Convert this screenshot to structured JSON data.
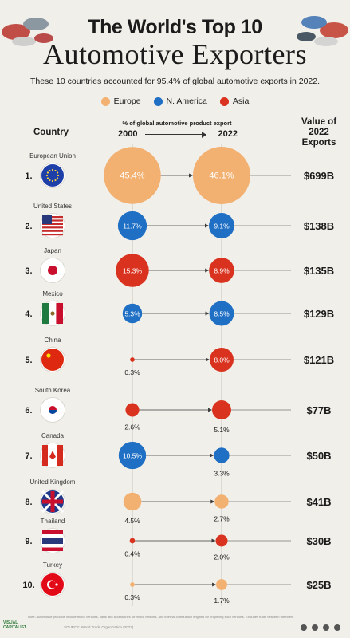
{
  "header": {
    "title_line1": "The World's Top 10",
    "title_line2": "Automotive Exporters",
    "subtitle": "These 10 countries accounted for 95.4% of global automotive exports in 2022."
  },
  "legend": [
    {
      "label": "Europe",
      "color": "#f2b071"
    },
    {
      "label": "N. America",
      "color": "#1f6fc5"
    },
    {
      "label": "Asia",
      "color": "#d9321f"
    }
  ],
  "columns": {
    "country": "Country",
    "share_header": "% of global automotive product export",
    "year_start": "2000",
    "year_end": "2022",
    "value_header_1": "Value of",
    "value_header_2": "2022",
    "value_header_3": "Exports"
  },
  "chart_data": {
    "type": "scatter",
    "title": "The World's Top 10 Automotive Exporters",
    "subtitle": "These 10 countries accounted for 95.4% of global automotive exports in 2022.",
    "x_categories": [
      "2000",
      "2022"
    ],
    "rows": [
      {
        "rank": "1.",
        "country": "European Union",
        "region": "Europe",
        "share_2000": 45.4,
        "share_2022": 46.1,
        "label_2000": "45.4%",
        "label_2022": "46.1%",
        "value_2022": "$699B"
      },
      {
        "rank": "2.",
        "country": "United States",
        "region": "N. America",
        "share_2000": 11.7,
        "share_2022": 9.1,
        "label_2000": "11.7%",
        "label_2022": "9.1%",
        "value_2022": "$138B"
      },
      {
        "rank": "3.",
        "country": "Japan",
        "region": "Asia",
        "share_2000": 15.3,
        "share_2022": 8.9,
        "label_2000": "15.3%",
        "label_2022": "8.9%",
        "value_2022": "$135B"
      },
      {
        "rank": "4.",
        "country": "Mexico",
        "region": "N. America",
        "share_2000": 5.3,
        "share_2022": 8.5,
        "label_2000": "5.3%",
        "label_2022": "8.5%",
        "value_2022": "$129B"
      },
      {
        "rank": "5.",
        "country": "China",
        "region": "Asia",
        "share_2000": 0.3,
        "share_2022": 8.0,
        "label_2000": "0.3%",
        "label_2022": "8.0%",
        "value_2022": "$121B"
      },
      {
        "rank": "6.",
        "country": "South Korea",
        "region": "Asia",
        "share_2000": 2.6,
        "share_2022": 5.1,
        "label_2000": "2.6%",
        "label_2022": "5.1%",
        "value_2022": "$77B"
      },
      {
        "rank": "7.",
        "country": "Canada",
        "region": "N. America",
        "share_2000": 10.5,
        "share_2022": 3.3,
        "label_2000": "10.5%",
        "label_2022": "3.3%",
        "value_2022": "$50B"
      },
      {
        "rank": "8.",
        "country": "United Kingdom",
        "region": "Europe",
        "share_2000": 4.5,
        "share_2022": 2.7,
        "label_2000": "4.5%",
        "label_2022": "2.7%",
        "value_2022": "$41B"
      },
      {
        "rank": "9.",
        "country": "Thailand",
        "region": "Asia",
        "share_2000": 0.4,
        "share_2022": 2.0,
        "label_2000": "0.4%",
        "label_2022": "2.0%",
        "value_2022": "$30B"
      },
      {
        "rank": "10.",
        "country": "Turkey",
        "region": "Europe",
        "share_2000": 0.3,
        "share_2022": 1.7,
        "label_2000": "0.3%",
        "label_2022": "1.7%",
        "value_2022": "$25B"
      }
    ]
  },
  "footer": {
    "note": "Note: Automotive products include motor vehicles, parts and accessories for motor vehicles, and internal combustion engines for propelling such vehicles. Excludes trade between members.",
    "source": "SOURCE: World Trade Organization (2023)",
    "logo": "VISUAL CAPITALIST"
  }
}
